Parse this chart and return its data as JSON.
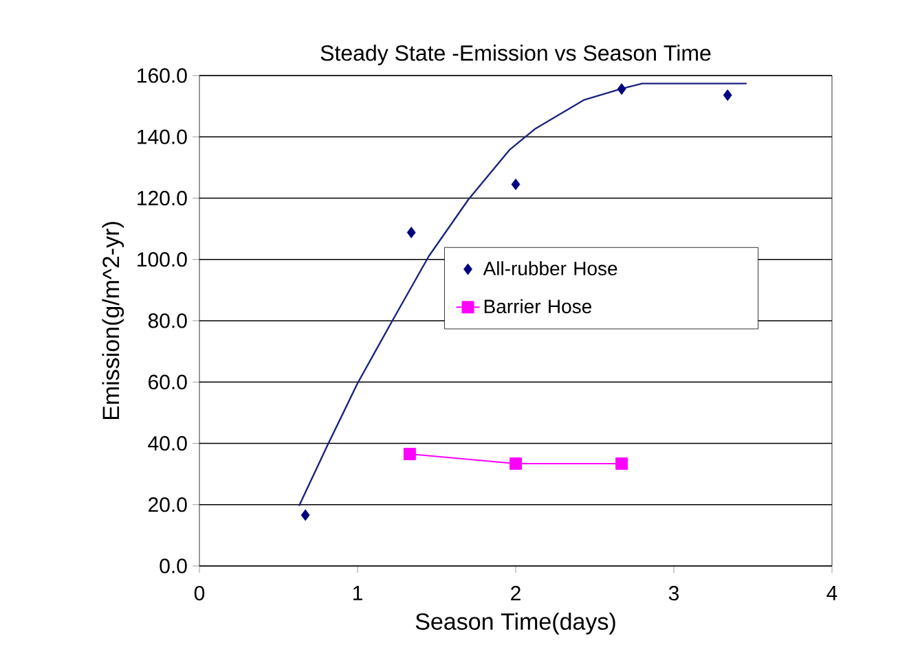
{
  "chart_data": {
    "type": "scatter",
    "title": "Steady State -Emission vs Season Time",
    "xlabel": "Season Time(days)",
    "ylabel": "Emission(g/m^2-yr)",
    "xlim": [
      0,
      4
    ],
    "xticks": [
      0,
      1,
      2,
      3,
      4
    ],
    "ylim": [
      0,
      160
    ],
    "yticks": [
      {
        "value": 0,
        "label": "0.0"
      },
      {
        "value": 20,
        "label": "20.0"
      },
      {
        "value": 40,
        "label": "40.0"
      },
      {
        "value": 60,
        "label": "60.0"
      },
      {
        "value": 80,
        "label": "80.0"
      },
      {
        "value": 100,
        "label": "100.0"
      },
      {
        "value": 120,
        "label": "120.0"
      },
      {
        "value": 140,
        "label": "140.0"
      },
      {
        "value": 160,
        "label": "160.0"
      }
    ],
    "grid": "y",
    "legend": "right",
    "series": [
      {
        "name": "All-rubber Hose",
        "type": "scatter",
        "marker": "diamond",
        "color": "#000080",
        "x": [
          0.67,
          1.34,
          2.0,
          2.67,
          3.34
        ],
        "values": [
          16.6,
          108.8,
          124.5,
          155.6,
          153.6
        ]
      },
      {
        "type": "line",
        "marker": "none",
        "color": "#1a237e",
        "x": [
          0.63,
          0.81,
          1.0,
          1.22,
          1.45,
          1.7,
          1.96,
          2.12,
          2.43,
          2.67,
          2.8,
          3.46
        ],
        "values": [
          19.6,
          39.4,
          59.6,
          80,
          101,
          119.5,
          135.7,
          142.5,
          152,
          155.7,
          157.4,
          157.4
        ]
      },
      {
        "name": "Barrier Hose",
        "type": "line",
        "marker": "square",
        "color": "#ff00ff",
        "x": [
          1.33,
          2.0,
          2.67
        ],
        "values": [
          36.5,
          33.4,
          33.4
        ]
      }
    ]
  }
}
